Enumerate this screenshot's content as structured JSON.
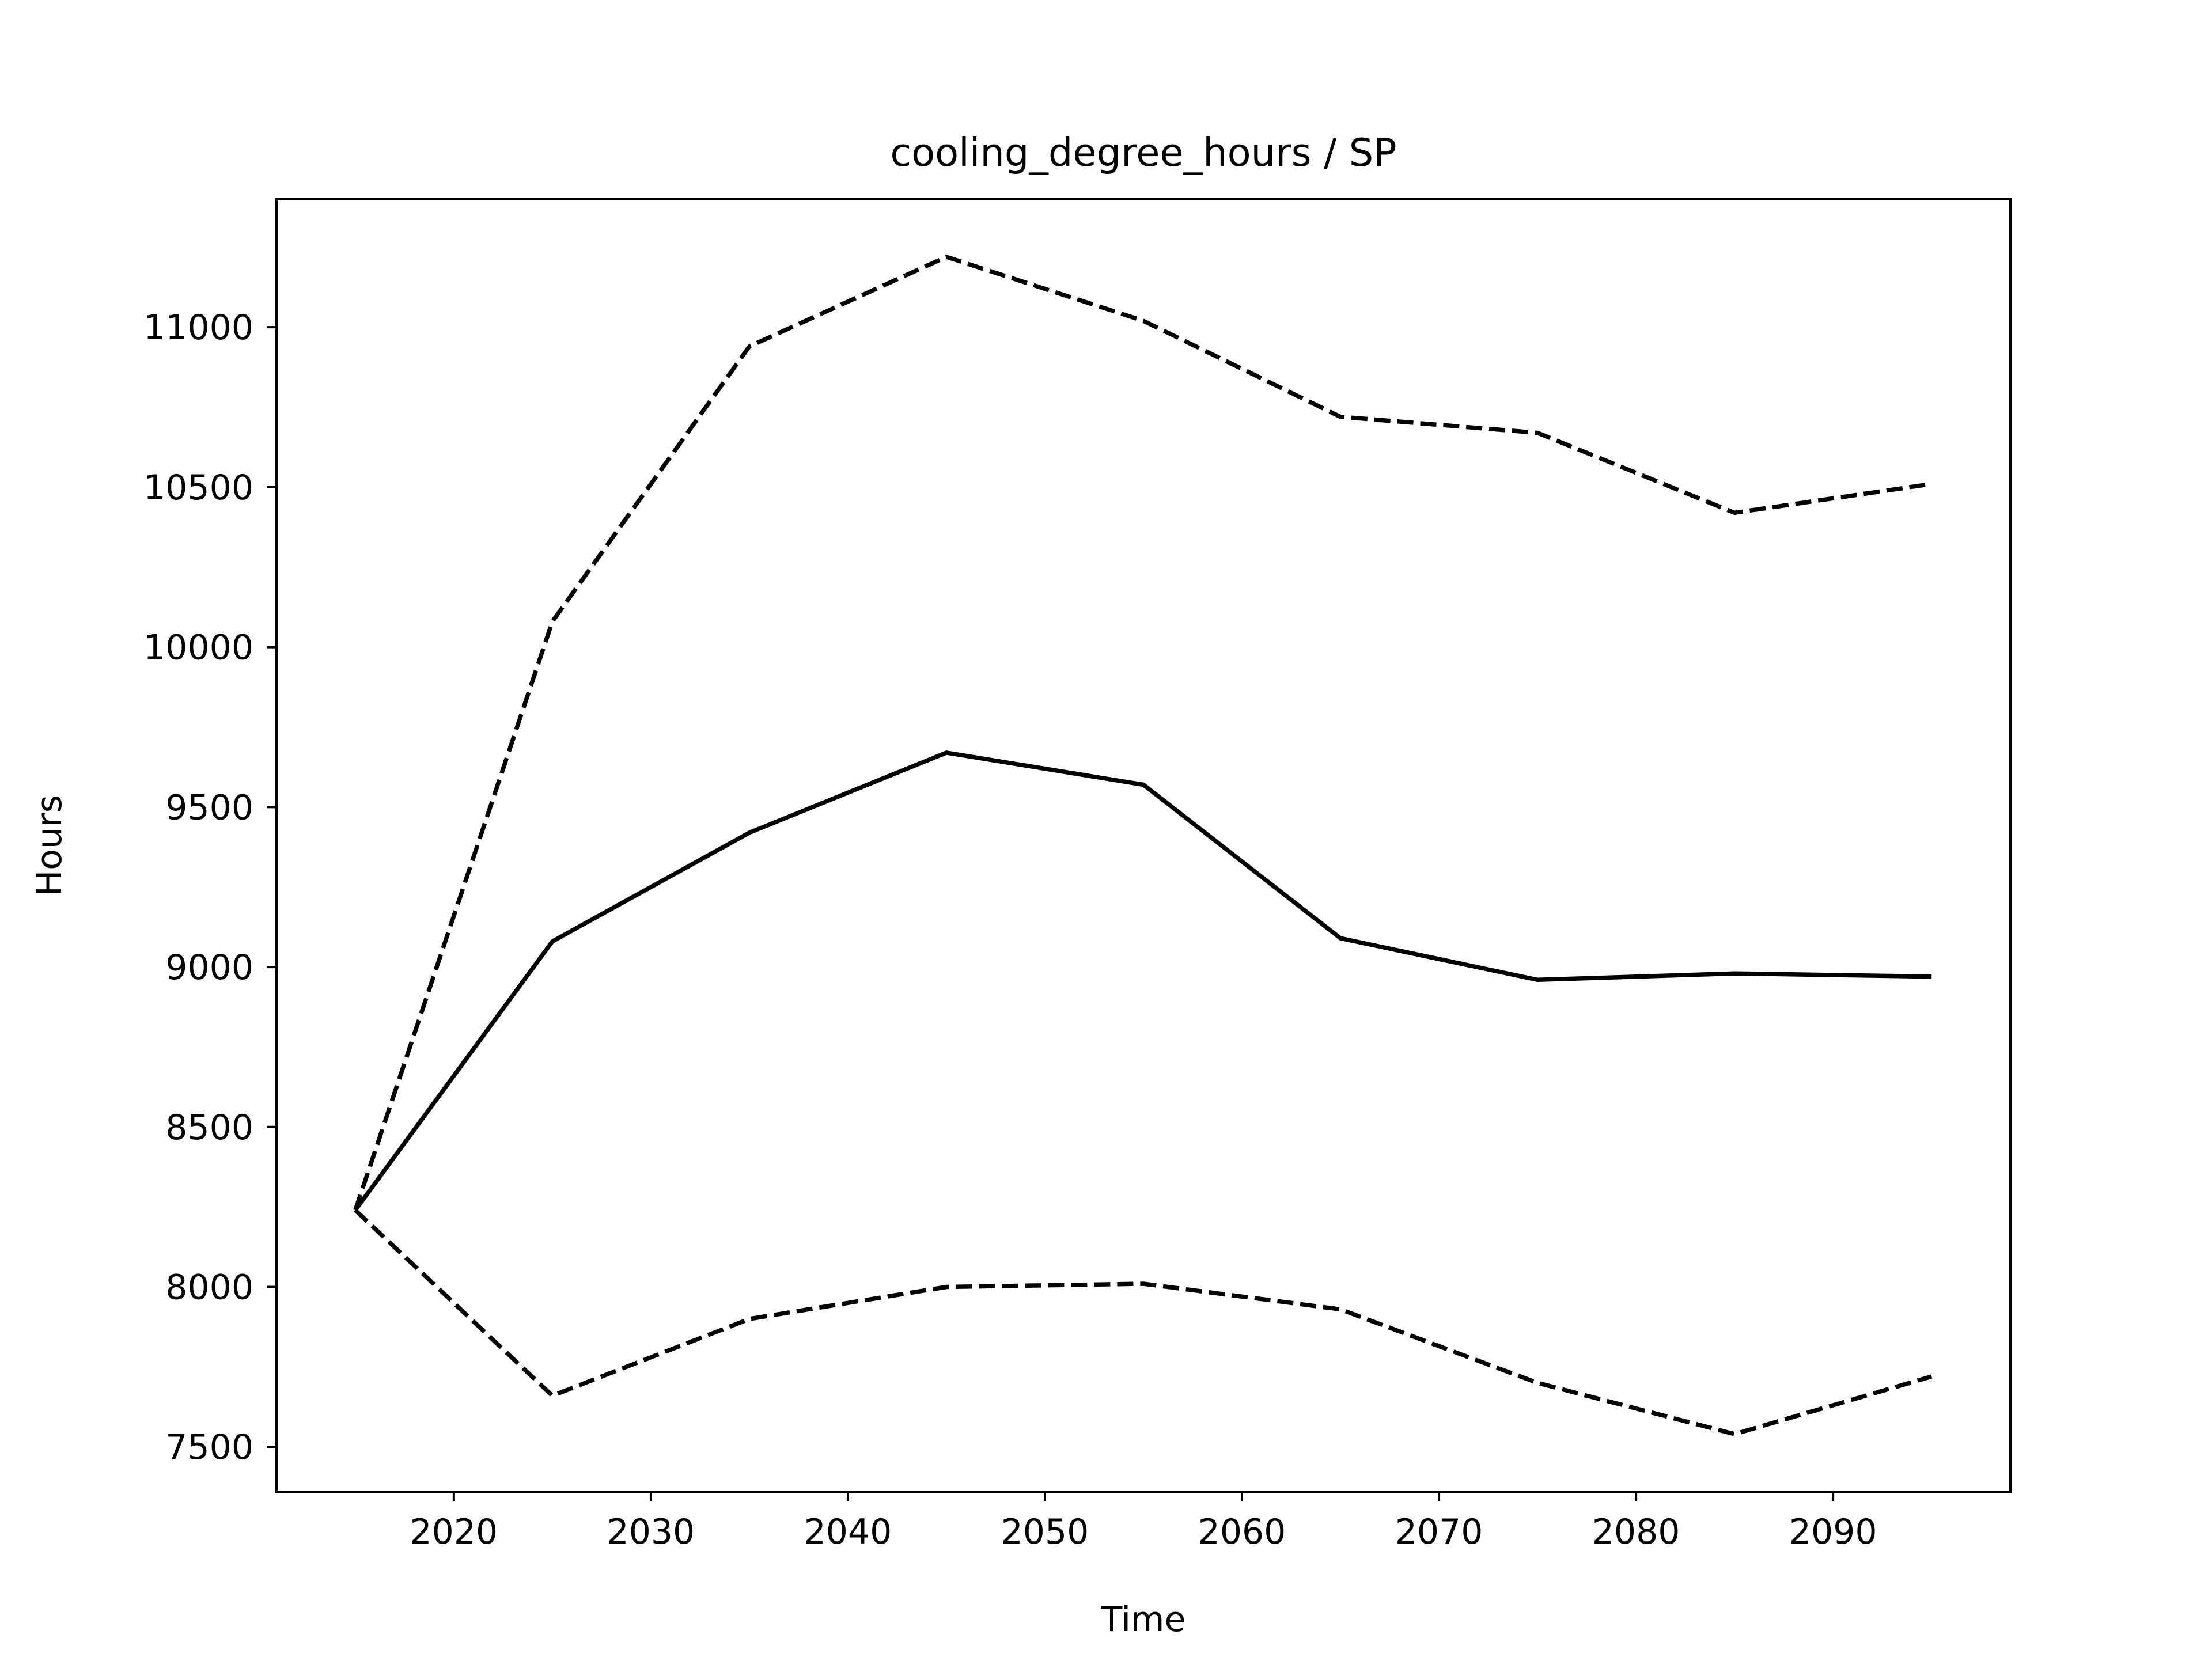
{
  "chart_data": {
    "type": "line",
    "title": "cooling_degree_hours / SP",
    "xlabel": "Time",
    "ylabel": "Hours",
    "x": [
      2015,
      2025,
      2035,
      2045,
      2055,
      2065,
      2075,
      2085,
      2095
    ],
    "xlim": [
      2011,
      2099
    ],
    "ylim": [
      7360,
      11400
    ],
    "x_ticks": [
      2020,
      2030,
      2040,
      2050,
      2060,
      2070,
      2080,
      2090
    ],
    "y_ticks": [
      7500,
      8000,
      8500,
      9000,
      9500,
      10000,
      10500,
      11000
    ],
    "grid": false,
    "series": [
      {
        "style": "dashed",
        "color": "#000000",
        "values": [
          8240,
          10080,
          10940,
          11220,
          11020,
          10720,
          10670,
          10420,
          10510
        ]
      },
      {
        "style": "solid",
        "color": "#000000",
        "values": [
          8240,
          9080,
          9420,
          9670,
          9570,
          9090,
          8960,
          8980,
          8970
        ]
      },
      {
        "style": "dashed",
        "color": "#000000",
        "values": [
          8240,
          7660,
          7900,
          8000,
          8010,
          7930,
          7700,
          7540,
          7720
        ]
      }
    ]
  }
}
